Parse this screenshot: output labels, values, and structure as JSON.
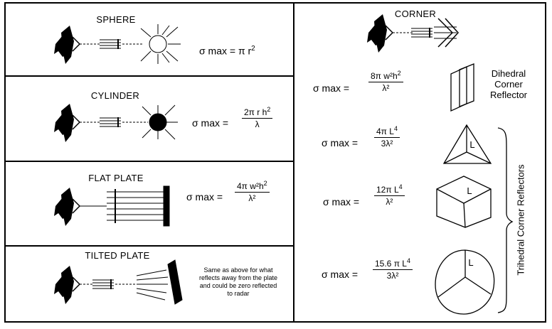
{
  "sections": {
    "sphere": {
      "title": "SPHERE",
      "formula_lhs": "σ max =",
      "formula_rhs": "π r",
      "exponent": "2"
    },
    "cylinder": {
      "title": "CYLINDER",
      "formula_lhs": "σ max =",
      "numerator": "2π r h",
      "num_exp": "2",
      "denominator": "λ"
    },
    "flat_plate": {
      "title": "FLAT PLATE",
      "formula_lhs": "σ max =",
      "numerator": "4π w²h",
      "num_exp": "2",
      "denominator": "λ²"
    },
    "tilted_plate": {
      "title": "TILTED PLATE",
      "note": "Same as above for what reflects away from the plate and could be zero reflected to radar"
    },
    "corner": {
      "title": "CORNER"
    },
    "dihedral": {
      "formula_lhs": "σ max =",
      "numerator": "8π w²h",
      "num_exp": "2",
      "denominator": "λ²",
      "label": "Dihedral Corner Reflector"
    },
    "trihedral_triangle": {
      "formula_lhs": "σ max =",
      "numerator": "4π L",
      "num_exp": "4",
      "denominator": "3λ²",
      "shape_label": "L"
    },
    "trihedral_square": {
      "formula_lhs": "σ max =",
      "numerator": "12π L",
      "num_exp": "4",
      "denominator": "λ²",
      "shape_label": "L"
    },
    "trihedral_circular": {
      "formula_lhs": "σ max =",
      "numerator": "15.6 π L",
      "num_exp": "4",
      "denominator": "3λ²",
      "shape_label": "L"
    },
    "trihedral_group_label": "Trihedral Corner Reflectors"
  }
}
